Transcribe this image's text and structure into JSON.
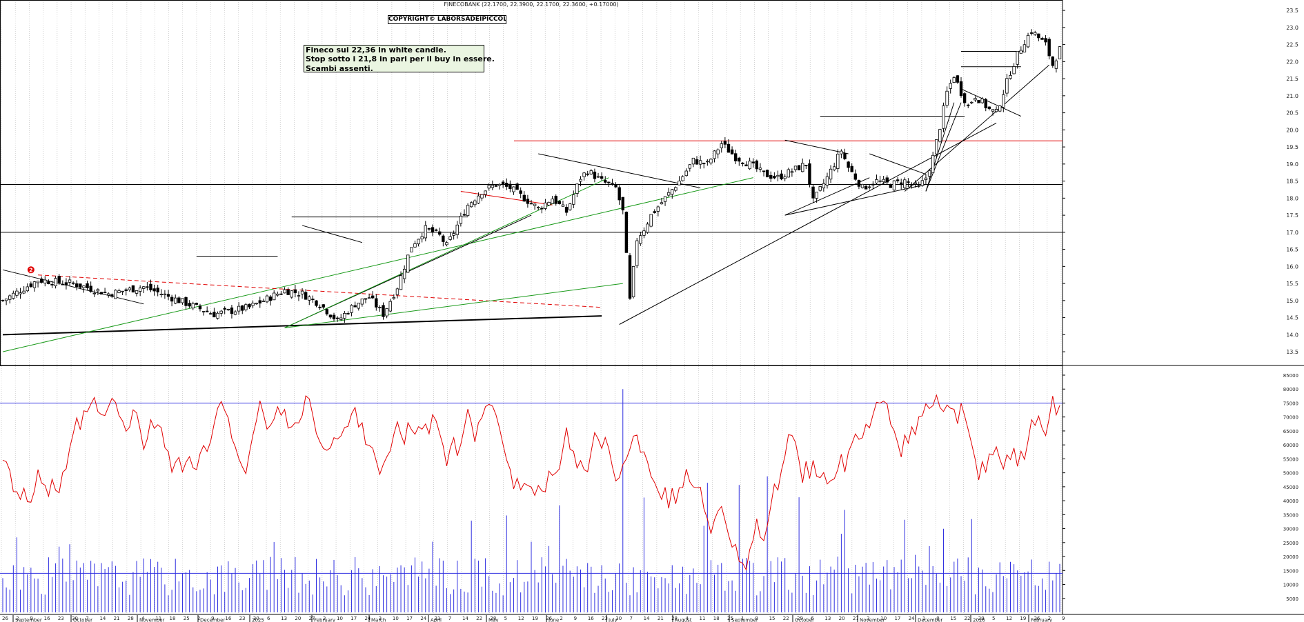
{
  "header": {
    "title": "FINECOBANK (22.1700, 22.3900, 22.1700, 22.3600, +0.17000)",
    "copyright": "COPYRIGHT© LABORSADEIPICCOLI.COM"
  },
  "note": {
    "line1": "Fineco sui 22,36 in white candle.",
    "line2": "Stop sotto i 21,8 in pari per il buy in essere.",
    "line3": "Scambi assenti."
  },
  "colors": {
    "up": "#ffffff",
    "down": "#000000",
    "volume": "#2d2de0",
    "oscillator": "#e00000",
    "green": "#1a9a1a",
    "red": "#e00000",
    "grid": "#b8b8b8"
  },
  "chart_data": [
    {
      "type": "candlestick",
      "title": "FINECOBANK",
      "ylim": [
        13.3,
        23.5
      ],
      "y_ticks": [
        13.5,
        14.0,
        14.5,
        15.0,
        15.5,
        16.0,
        16.5,
        17.0,
        17.5,
        18.0,
        18.5,
        19.0,
        19.5,
        20.0,
        20.5,
        21.0,
        21.5,
        22.0,
        22.5,
        23.0,
        23.5
      ],
      "ohlc_close_path": [
        [
          0,
          15.0
        ],
        [
          10,
          15.6
        ],
        [
          20,
          15.5
        ],
        [
          30,
          15.2
        ],
        [
          40,
          15.4
        ],
        [
          50,
          15.0
        ],
        [
          60,
          14.6
        ],
        [
          70,
          14.8
        ],
        [
          80,
          15.3
        ],
        [
          85,
          15.2
        ],
        [
          90,
          14.9
        ],
        [
          95,
          14.4
        ],
        [
          100,
          14.9
        ],
        [
          104,
          15.1
        ],
        [
          108,
          14.6
        ],
        [
          112,
          15.4
        ],
        [
          116,
          16.6
        ],
        [
          120,
          17.1
        ],
        [
          124,
          16.9
        ],
        [
          126,
          16.6
        ],
        [
          128,
          17.0
        ],
        [
          132,
          17.8
        ],
        [
          136,
          18.2
        ],
        [
          140,
          18.4
        ],
        [
          144,
          18.3
        ],
        [
          148,
          18.0
        ],
        [
          152,
          17.7
        ],
        [
          156,
          18.0
        ],
        [
          160,
          17.6
        ],
        [
          164,
          18.6
        ],
        [
          166,
          18.8
        ],
        [
          170,
          18.5
        ],
        [
          174,
          18.3
        ],
        [
          176,
          17.6
        ],
        [
          178,
          15.0
        ],
        [
          180,
          16.8
        ],
        [
          182,
          17.1
        ],
        [
          184,
          17.5
        ],
        [
          188,
          18.0
        ],
        [
          192,
          18.5
        ],
        [
          196,
          19.1
        ],
        [
          200,
          19.0
        ],
        [
          204,
          19.6
        ],
        [
          208,
          19.2
        ],
        [
          212,
          19.0
        ],
        [
          216,
          18.7
        ],
        [
          220,
          18.6
        ],
        [
          224,
          18.8
        ],
        [
          228,
          19.0
        ],
        [
          230,
          17.9
        ],
        [
          234,
          18.6
        ],
        [
          238,
          19.4
        ],
        [
          240,
          18.9
        ],
        [
          244,
          18.3
        ],
        [
          248,
          18.5
        ],
        [
          252,
          18.4
        ],
        [
          256,
          18.5
        ],
        [
          260,
          18.3
        ],
        [
          262,
          18.6
        ],
        [
          264,
          19.2
        ],
        [
          266,
          20.1
        ],
        [
          268,
          21.1
        ],
        [
          270,
          21.6
        ],
        [
          272,
          21.1
        ],
        [
          274,
          20.7
        ],
        [
          276,
          21.0
        ],
        [
          278,
          20.8
        ],
        [
          280,
          20.6
        ],
        [
          282,
          20.5
        ],
        [
          284,
          21.1
        ],
        [
          286,
          21.7
        ],
        [
          288,
          22.2
        ],
        [
          290,
          22.6
        ],
        [
          292,
          22.9
        ],
        [
          294,
          22.7
        ],
        [
          296,
          22.5
        ],
        [
          298,
          21.9
        ],
        [
          300,
          22.36
        ]
      ],
      "annotation": "2",
      "hlines": [
        {
          "price": 19.68,
          "color": "red"
        },
        {
          "price": 18.4,
          "color": "black"
        },
        {
          "price": 17.0,
          "color": "black"
        }
      ]
    },
    {
      "type": "bar+line",
      "title": "Volume",
      "ylim": [
        0,
        85000
      ],
      "y_ticks": [
        5000,
        10000,
        15000,
        20000,
        25000,
        30000,
        35000,
        40000,
        45000,
        50000,
        55000,
        60000,
        65000,
        70000,
        75000,
        80000,
        85000
      ],
      "oscillator_hline": 75000,
      "volume_hline": 14000
    }
  ],
  "x_axis": {
    "top_row": [
      "26",
      "2",
      "9",
      "16",
      "23",
      "30",
      "7",
      "14",
      "21",
      "28",
      "4",
      "11",
      "18",
      "25",
      "2",
      "9",
      "16",
      "23",
      "30",
      "6",
      "13",
      "20",
      "27",
      "3",
      "10",
      "17",
      "24",
      "3",
      "10",
      "17",
      "24",
      "31",
      "7",
      "14",
      "22",
      "28",
      "5",
      "12",
      "19",
      "26",
      "2",
      "9",
      "16",
      "23",
      "30",
      "7",
      "14",
      "21",
      "28",
      "4",
      "11",
      "18",
      "25",
      "1",
      "8",
      "15",
      "22",
      "29",
      "6",
      "13",
      "20",
      "27",
      "3",
      "10",
      "17",
      "24",
      "1",
      "8",
      "15",
      "22",
      "29",
      "5",
      "12",
      "19",
      "26",
      "2",
      "9"
    ],
    "months": [
      "September",
      "October",
      "November",
      "December",
      "2025",
      "February",
      "March",
      "April",
      "May",
      "June",
      "July",
      "August",
      "September",
      "October",
      "November",
      "December",
      "2026",
      "February"
    ]
  }
}
